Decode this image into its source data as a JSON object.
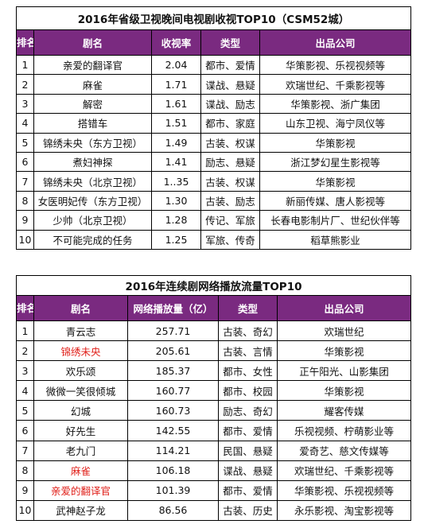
{
  "table1": {
    "title": "2016年省级卫视晚间电视剧收视TOP10（CSM52城）",
    "headers": [
      "排名",
      "剧名",
      "收视率",
      "类型",
      "出品公司"
    ],
    "rows": [
      {
        "rank": "1",
        "name": "亲爱的翻译官",
        "rating": "2.04",
        "genre": "都市、爱情",
        "company": "华策影视、乐视视频等"
      },
      {
        "rank": "2",
        "name": "麻雀",
        "rating": "1.71",
        "genre": "谍战、悬疑",
        "company": "欢瑞世纪、千乘影视等"
      },
      {
        "rank": "3",
        "name": "解密",
        "rating": "1.61",
        "genre": "谍战、励志",
        "company": "华策影视、浙广集团"
      },
      {
        "rank": "4",
        "name": "搭错车",
        "rating": "1.51",
        "genre": "都市、家庭",
        "company": "山东卫视、海宁凤仪等"
      },
      {
        "rank": "5",
        "name": "锦绣未央（东方卫视）",
        "rating": "1.49",
        "genre": "古装、权谋",
        "company": "华策影视"
      },
      {
        "rank": "6",
        "name": "煮妇神探",
        "rating": "1.41",
        "genre": "励志、悬疑",
        "company": "浙江梦幻星生影视等"
      },
      {
        "rank": "7",
        "name": "锦绣未央（北京卫视）",
        "rating": "1..35",
        "genre": "古装、权谋",
        "company": "华策影视"
      },
      {
        "rank": "8",
        "name": "女医明妃传（东方卫视）",
        "rating": "1.30",
        "genre": "古装、励志",
        "company": "新丽传媒、唐人影视等"
      },
      {
        "rank": "9",
        "name": "少帅（北京卫视）",
        "rating": "1.28",
        "genre": "传记、军旅",
        "company": "长春电影制片厂、世纪伙伴等"
      },
      {
        "rank": "10",
        "name": "不可能完成的任务",
        "rating": "1.25",
        "genre": "军旅、传奇",
        "company": "稻草熊影业"
      }
    ]
  },
  "table2": {
    "title": "2016年连续剧网络播放流量TOP10",
    "headers": [
      "排名",
      "剧名",
      "网络播放量（亿）",
      "类型",
      "出品公司"
    ],
    "rows": [
      {
        "rank": "1",
        "name": "青云志",
        "views": "257.71",
        "genre": "古装、奇幻",
        "company": "欢瑞世纪",
        "highlight": false
      },
      {
        "rank": "2",
        "name": "锦绣未央",
        "views": "205.61",
        "genre": "古装、言情",
        "company": "华策影视",
        "highlight": true
      },
      {
        "rank": "3",
        "name": "欢乐颂",
        "views": "185.37",
        "genre": "都市、女性",
        "company": "正午阳光、山影集团",
        "highlight": false
      },
      {
        "rank": "4",
        "name": "微微一笑很倾城",
        "views": "160.77",
        "genre": "都市、校园",
        "company": "华策影视",
        "highlight": false
      },
      {
        "rank": "5",
        "name": "幻城",
        "views": "160.73",
        "genre": "励志、奇幻",
        "company": "耀客传媒",
        "highlight": false
      },
      {
        "rank": "6",
        "name": "好先生",
        "views": "142.55",
        "genre": "都市、爱情",
        "company": "乐视视频、柠萌影业等",
        "highlight": false
      },
      {
        "rank": "7",
        "name": "老九门",
        "views": "114.21",
        "genre": "民国、悬疑",
        "company": "爱奇艺、慈文传媒等",
        "highlight": false
      },
      {
        "rank": "8",
        "name": "麻雀",
        "views": "106.18",
        "genre": "谍战、悬疑",
        "company": "欢瑞世纪、千乘影视等",
        "highlight": true
      },
      {
        "rank": "9",
        "name": "亲爱的翻译官",
        "views": "101.39",
        "genre": "都市、爱情",
        "company": "华策影视、乐视视频等",
        "highlight": true
      },
      {
        "rank": "10",
        "name": "武神赵子龙",
        "views": "86.56",
        "genre": "古装、历史",
        "company": "永乐影视、淘宝影视等",
        "highlight": false
      }
    ]
  }
}
